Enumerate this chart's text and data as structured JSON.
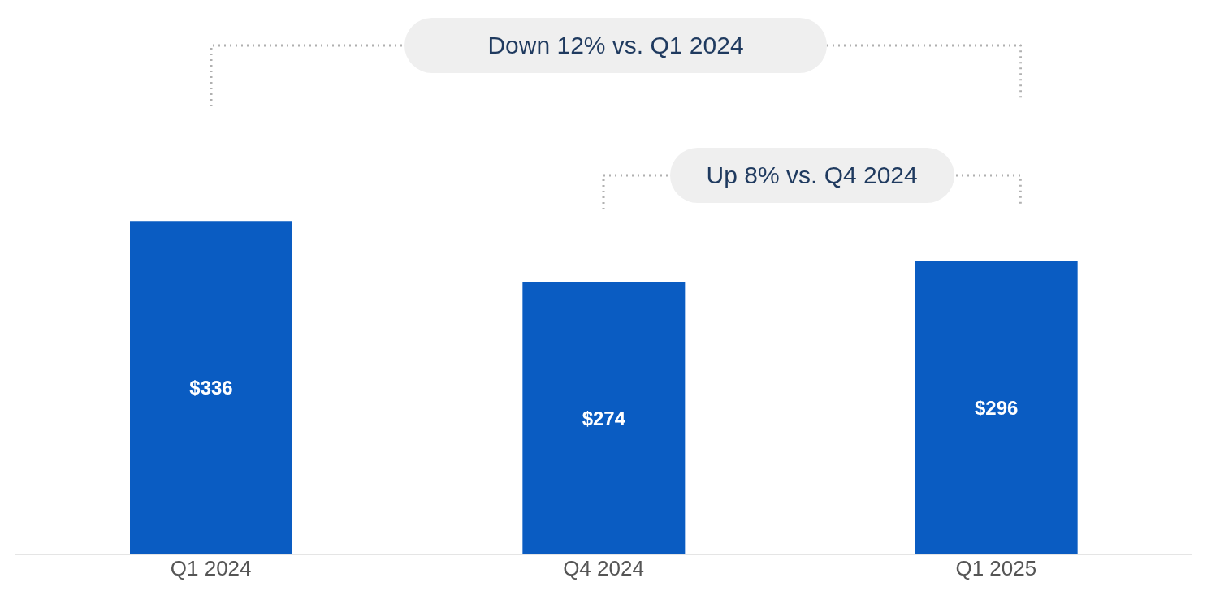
{
  "chart_data": {
    "type": "bar",
    "categories": [
      "Q1 2024",
      "Q4 2024",
      "Q1 2025"
    ],
    "values": [
      336,
      274,
      296
    ],
    "value_labels": [
      "$336",
      "$274",
      "$296"
    ],
    "color": "#0a5cc2",
    "annotations": [
      "Down 12% vs. Q1 2024",
      "Up 8% vs. Q4 2024"
    ]
  }
}
